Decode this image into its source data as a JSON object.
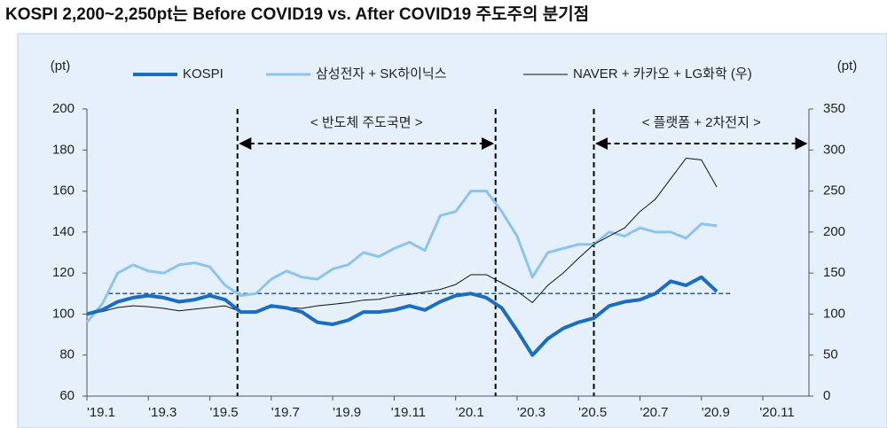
{
  "chart_data": {
    "type": "line",
    "title": "KOSPI 2,200~2,250pt는 Before COVID19 vs. After COVID19 주도주의 분기점",
    "ylabel": "(pt)",
    "y2label": "(pt)",
    "x": [
      0,
      0.5,
      1,
      1.5,
      2,
      2.5,
      3,
      3.5,
      4,
      4.5,
      5,
      5.5,
      6,
      6.5,
      7,
      7.5,
      8,
      8.5,
      9,
      9.5,
      10,
      10.5,
      11,
      11.5,
      12,
      12.5,
      13,
      13.5,
      14,
      14.5,
      15,
      15.5,
      16,
      16.5,
      17,
      17.5,
      18,
      18.5,
      19,
      19.5,
      20,
      20.5
    ],
    "xlim": [
      0,
      23.5
    ],
    "xticks": [
      {
        "value": 0,
        "label": "'19.1"
      },
      {
        "value": 2,
        "label": "'19.3"
      },
      {
        "value": 4,
        "label": "'19.5"
      },
      {
        "value": 6,
        "label": "'19.7"
      },
      {
        "value": 8,
        "label": "'19.9"
      },
      {
        "value": 10,
        "label": "'19.11"
      },
      {
        "value": 12,
        "label": "'20.1"
      },
      {
        "value": 14,
        "label": "'20.3"
      },
      {
        "value": 16,
        "label": "'20.5"
      },
      {
        "value": 18,
        "label": "'20.7"
      },
      {
        "value": 20,
        "label": "'20.9"
      },
      {
        "value": 22,
        "label": "'20.11"
      }
    ],
    "ylim": [
      60,
      200
    ],
    "yticks": [
      60,
      80,
      100,
      120,
      140,
      160,
      180,
      200
    ],
    "y2lim": [
      0,
      350
    ],
    "y2ticks": [
      0,
      50,
      100,
      150,
      200,
      250,
      300,
      350
    ],
    "series": [
      {
        "name": "KOSPI",
        "color": "#1a6dbf",
        "values": [
          100,
          102,
          106,
          108,
          109,
          108,
          106,
          107,
          109,
          107,
          101,
          101,
          104,
          103,
          101,
          96,
          95,
          97,
          101,
          101,
          102,
          104,
          102,
          106,
          109,
          110,
          108,
          103,
          92,
          80,
          88,
          93,
          96,
          98,
          104,
          106,
          107,
          110,
          116,
          114,
          118,
          111
        ]
      },
      {
        "name": "삼성전자 + SK하이닉스",
        "color": "#8dc4ee",
        "values": [
          96,
          105,
          120,
          124,
          121,
          120,
          124,
          125,
          123,
          114,
          109,
          110,
          117,
          121,
          118,
          117,
          122,
          124,
          130,
          128,
          132,
          135,
          131,
          148,
          150,
          160,
          160,
          150,
          138,
          118,
          130,
          132,
          134,
          134,
          140,
          138,
          142,
          140,
          140,
          137,
          144,
          143
        ]
      },
      {
        "name": "NAVER + 카카오 + LG화학 (우)",
        "color": "#111111",
        "axis": "y2",
        "values": [
          100,
          103,
          108,
          110,
          109,
          107,
          104,
          106,
          108,
          110,
          103,
          104,
          108,
          108,
          107,
          110,
          112,
          114,
          117,
          118,
          122,
          124,
          127,
          130,
          136,
          148,
          148,
          138,
          128,
          114,
          135,
          150,
          168,
          185,
          195,
          205,
          225,
          240,
          265,
          290,
          288,
          255
        ]
      }
    ],
    "hline": 110,
    "vlines": [
      4.9,
      13.3,
      16.5
    ],
    "annotations": [
      "< 반도체 주도국면 >",
      "< 플랫폼 + 2차전지 >"
    ]
  }
}
